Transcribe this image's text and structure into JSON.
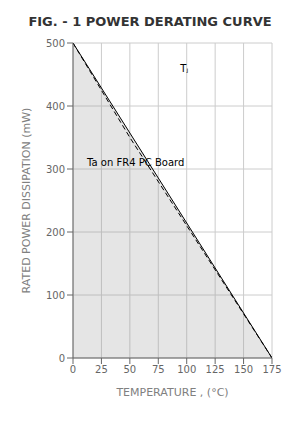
{
  "chart_data": {
    "type": "line",
    "title": "FIG. - 1  POWER DERATING CURVE",
    "x_label": "TEMPERATURE , (°C)",
    "y_label": "RATED POWER DISSIPATION (mW)",
    "xlim": [
      0,
      175
    ],
    "ylim": [
      0,
      500
    ],
    "xticks": [
      0,
      25,
      50,
      75,
      100,
      125,
      150,
      175
    ],
    "yticks": [
      0,
      100,
      200,
      300,
      400,
      500
    ],
    "grid": true,
    "series": [
      {
        "type": "area",
        "color": "#000000",
        "line_style": "solid",
        "x": [
          0,
          175
        ],
        "values": [
          500,
          0
        ]
      },
      {
        "type": "line",
        "color": "#000000",
        "line_style": "dashed",
        "x": [
          0,
          50,
          175
        ],
        "values": [
          500,
          350,
          0
        ]
      }
    ],
    "annotations": [
      {
        "text": "Tⱼ",
        "x": 90,
        "y": 460
      },
      {
        "text": "Ta on FR4 PC Board",
        "x": 8,
        "y": 310
      }
    ]
  }
}
